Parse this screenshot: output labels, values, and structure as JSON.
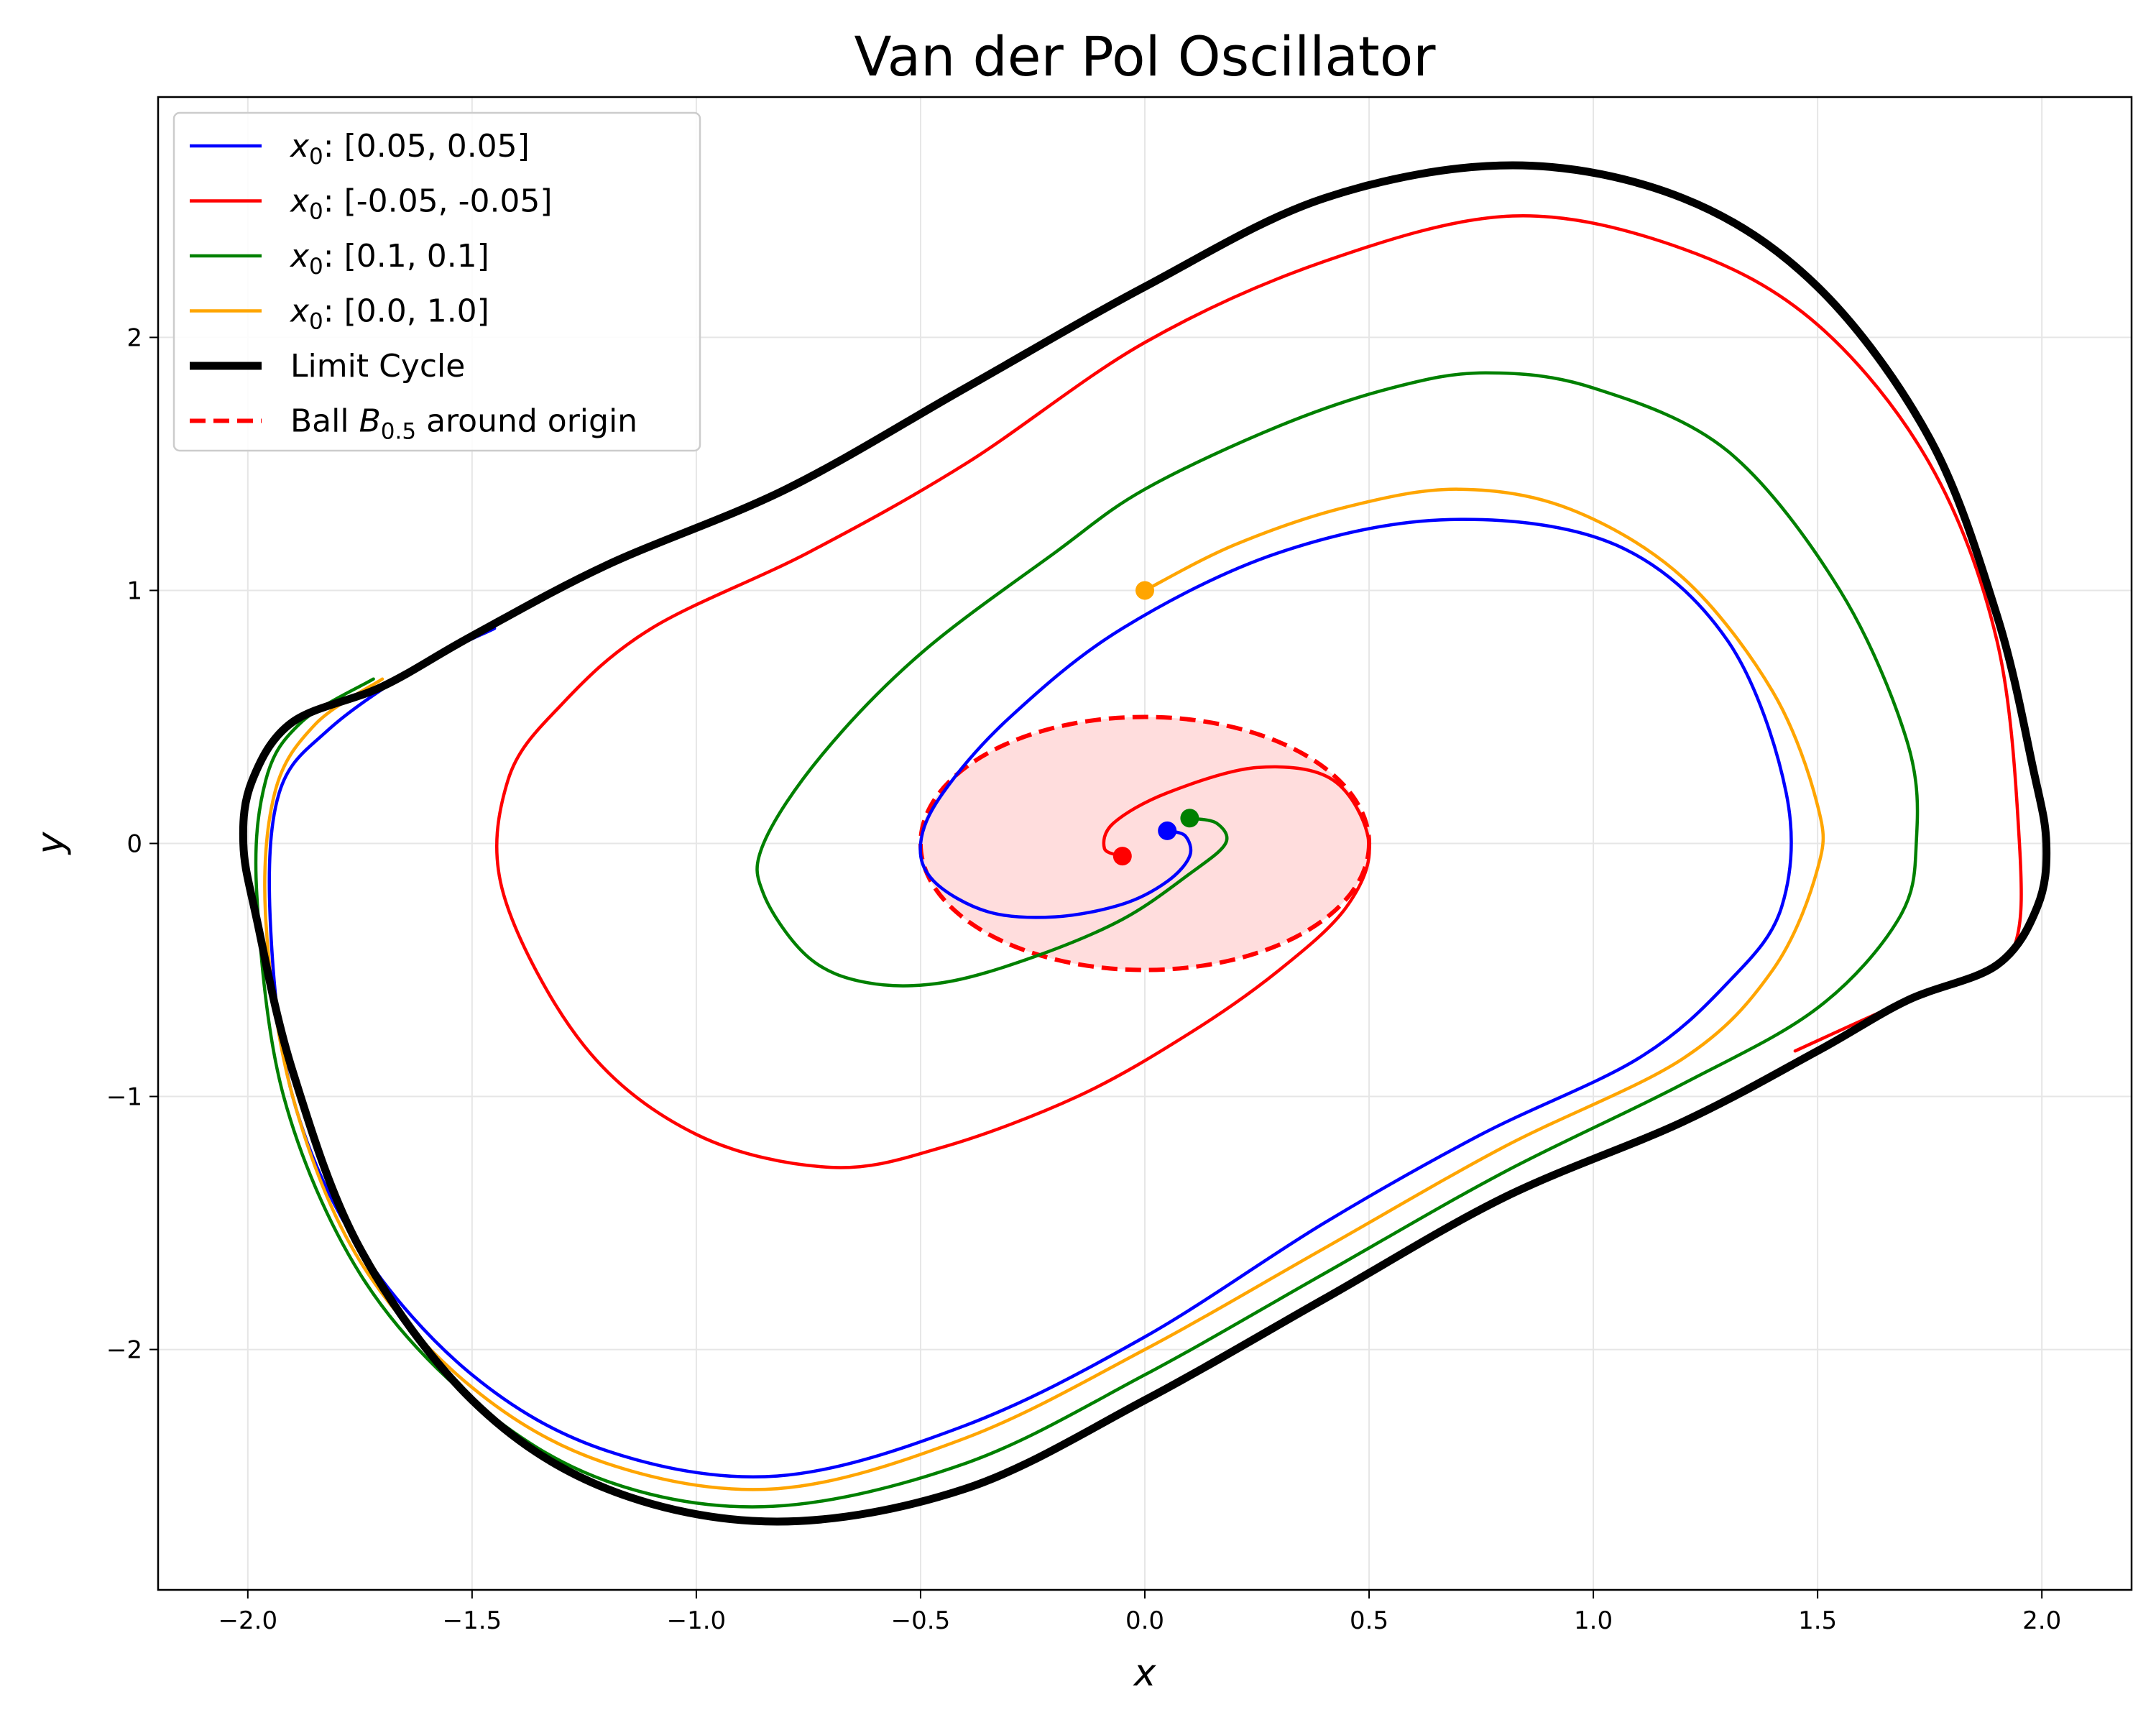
{
  "chart_data": {
    "type": "line",
    "title": "Van der Pol Oscillator",
    "xlabel": "x",
    "ylabel": "y",
    "xlim": [
      -2.2,
      2.2
    ],
    "ylim": [
      -2.95,
      2.95
    ],
    "xticks": [
      -2.0,
      -1.5,
      -1.0,
      -0.5,
      0.0,
      0.5,
      1.0,
      1.5,
      2.0
    ],
    "xtick_labels": [
      "−2.0",
      "−1.5",
      "−1.0",
      "−0.5",
      "0.0",
      "0.5",
      "1.0",
      "1.5",
      "2.0"
    ],
    "yticks": [
      -2,
      -1,
      0,
      1,
      2
    ],
    "ytick_labels": [
      "−2",
      "−1",
      "0",
      "1",
      "2"
    ],
    "grid": true,
    "legend_position": "top-left",
    "legend": [
      {
        "sym": "x",
        "sub": "0",
        "text": ": [0.05, 0.05]",
        "color": "#0000ff",
        "style": "solid"
      },
      {
        "sym": "x",
        "sub": "0",
        "text": ": [-0.05, -0.05]",
        "color": "#ff0000",
        "style": "solid"
      },
      {
        "sym": "x",
        "sub": "0",
        "text": ": [0.1, 0.1]",
        "color": "#008000",
        "style": "solid"
      },
      {
        "sym": "x",
        "sub": "0",
        "text": ": [0.0, 1.0]",
        "color": "#ffa500",
        "style": "solid"
      },
      {
        "pre": "",
        "text": "Limit Cycle",
        "color": "#000000",
        "style": "thick"
      },
      {
        "pre": "Ball ",
        "sym": "B",
        "sub": "0.5",
        "text": " around origin",
        "color": "#ff0000",
        "style": "dashed"
      }
    ],
    "ball": {
      "center": [
        0,
        0
      ],
      "radius": 0.5,
      "fill": "#ffdddd",
      "edge": "#ff0000"
    },
    "series": [
      {
        "color": "#0000ff",
        "start": [
          0.05,
          0.05
        ],
        "x": [
          0.05,
          0.09,
          0.1,
          0.05,
          -0.05,
          -0.2,
          -0.35,
          -0.47,
          -0.5,
          -0.45,
          -0.3,
          -0.05,
          0.3,
          0.68,
          1.05,
          1.3,
          1.43,
          1.42,
          1.3,
          1.1,
          0.75,
          0.4,
          0.0,
          -0.4,
          -0.82,
          -1.2,
          -1.5,
          -1.75,
          -1.9,
          -1.95,
          -1.93,
          -1.82,
          -1.62,
          -1.45
        ],
        "y": [
          0.05,
          0.03,
          -0.05,
          -0.15,
          -0.24,
          -0.29,
          -0.27,
          -0.15,
          0.0,
          0.2,
          0.5,
          0.85,
          1.15,
          1.28,
          1.18,
          0.8,
          0.2,
          -0.25,
          -0.55,
          -0.85,
          -1.15,
          -1.5,
          -1.95,
          -2.3,
          -2.5,
          -2.4,
          -2.1,
          -1.6,
          -1.0,
          -0.3,
          0.2,
          0.45,
          0.7,
          0.85
        ]
      },
      {
        "color": "#ff0000",
        "start": [
          -0.05,
          -0.05
        ],
        "x": [
          -0.05,
          -0.09,
          -0.07,
          0.05,
          0.25,
          0.42,
          0.5,
          0.45,
          0.3,
          0.1,
          -0.15,
          -0.45,
          -0.7,
          -1.0,
          -1.25,
          -1.43,
          -1.42,
          -1.3,
          -1.1,
          -0.75,
          -0.4,
          0.0,
          0.4,
          0.82,
          1.2,
          1.5,
          1.75,
          1.9,
          1.95,
          1.94,
          1.85,
          1.7,
          1.45
        ],
        "y": [
          -0.05,
          -0.02,
          0.08,
          0.2,
          0.3,
          0.25,
          0.0,
          -0.25,
          -0.5,
          -0.75,
          -1.0,
          -1.2,
          -1.28,
          -1.15,
          -0.8,
          -0.2,
          0.25,
          0.55,
          0.85,
          1.15,
          1.5,
          1.98,
          2.3,
          2.48,
          2.35,
          2.05,
          1.5,
          0.8,
          0.0,
          -0.4,
          -0.52,
          -0.62,
          -0.82
        ]
      },
      {
        "color": "#008000",
        "start": [
          0.1,
          0.1
        ],
        "x": [
          0.1,
          0.16,
          0.18,
          0.1,
          -0.05,
          -0.25,
          -0.45,
          -0.62,
          -0.75,
          -0.85,
          -0.85,
          -0.72,
          -0.5,
          -0.2,
          0.0,
          0.3,
          0.55,
          0.76,
          1.0,
          1.3,
          1.55,
          1.7,
          1.72,
          1.68,
          1.5,
          1.2,
          0.8,
          0.4,
          0.0,
          -0.4,
          -0.83,
          -1.2,
          -1.5,
          -1.75,
          -1.92,
          -1.98,
          -1.96,
          -1.88,
          -1.72
        ],
        "y": [
          0.1,
          0.08,
          0.0,
          -0.12,
          -0.3,
          -0.45,
          -0.55,
          -0.55,
          -0.45,
          -0.2,
          0.0,
          0.35,
          0.75,
          1.15,
          1.4,
          1.65,
          1.8,
          1.86,
          1.8,
          1.55,
          1.0,
          0.4,
          0.0,
          -0.3,
          -0.65,
          -0.95,
          -1.3,
          -1.7,
          -2.1,
          -2.45,
          -2.62,
          -2.52,
          -2.2,
          -1.7,
          -1.0,
          -0.2,
          0.25,
          0.48,
          0.65
        ]
      },
      {
        "color": "#ffa500",
        "start": [
          0.0,
          1.0
        ],
        "x": [
          0.0,
          0.2,
          0.45,
          0.7,
          0.95,
          1.2,
          1.4,
          1.5,
          1.5,
          1.4,
          1.2,
          0.8,
          0.4,
          0.0,
          -0.4,
          -0.82,
          -1.2,
          -1.5,
          -1.75,
          -1.9,
          -1.96,
          -1.94,
          -1.85,
          -1.7
        ],
        "y": [
          1.0,
          1.18,
          1.33,
          1.4,
          1.32,
          1.05,
          0.6,
          0.15,
          -0.1,
          -0.5,
          -0.85,
          -1.2,
          -1.6,
          -2.0,
          -2.35,
          -2.55,
          -2.45,
          -2.15,
          -1.65,
          -1.0,
          -0.3,
          0.2,
          0.47,
          0.65
        ]
      },
      {
        "color": "#000000",
        "thick": true,
        "closed": true,
        "x": [
          0.0,
          0.4,
          0.82,
          1.2,
          1.5,
          1.75,
          1.9,
          1.98,
          2.01,
          1.99,
          1.9,
          1.7,
          1.5,
          1.2,
          0.8,
          0.4,
          0.0,
          -0.4,
          -0.82,
          -1.2,
          -1.5,
          -1.75,
          -1.9,
          -1.98,
          -2.01,
          -1.99,
          -1.9,
          -1.7,
          -1.5,
          -1.2,
          -0.8,
          -0.4
        ],
        "y": [
          2.2,
          2.55,
          2.68,
          2.55,
          2.2,
          1.6,
          0.9,
          0.3,
          0.0,
          -0.25,
          -0.48,
          -0.62,
          -0.82,
          -1.1,
          -1.4,
          -1.8,
          -2.2,
          -2.55,
          -2.68,
          -2.55,
          -2.2,
          -1.6,
          -0.9,
          -0.3,
          0.0,
          0.25,
          0.48,
          0.62,
          0.82,
          1.1,
          1.4,
          1.8
        ]
      }
    ]
  }
}
